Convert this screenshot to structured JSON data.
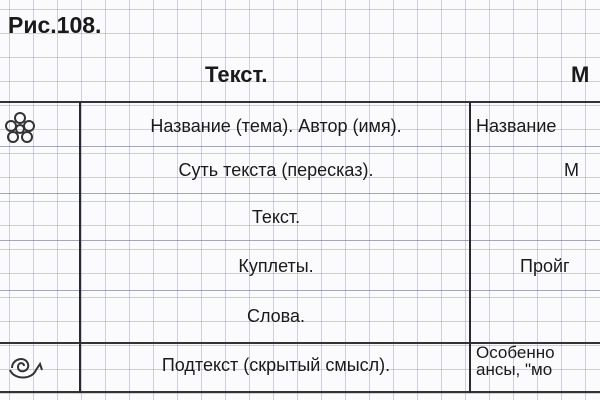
{
  "figure_label": "Рис.108.",
  "columns": [
    "Текст.",
    "М"
  ],
  "rows": [
    {
      "icon": "flower-icon",
      "text": "Название (тема). Автор (имя).",
      "right": "Название"
    },
    {
      "icon": "",
      "text": "Суть текста (пересказ).",
      "right": "М"
    },
    {
      "icon": "",
      "text": "Текст.",
      "right": ""
    },
    {
      "icon": "",
      "text": "Куплеты.",
      "right": "Пройг"
    },
    {
      "icon": "",
      "text": "Слова.",
      "right": ""
    },
    {
      "icon": "swirl-icon",
      "text": "Подтекст (скрытый смысл).",
      "right_line1": "Особенно",
      "right_line2": "ансы, \"мо"
    }
  ]
}
